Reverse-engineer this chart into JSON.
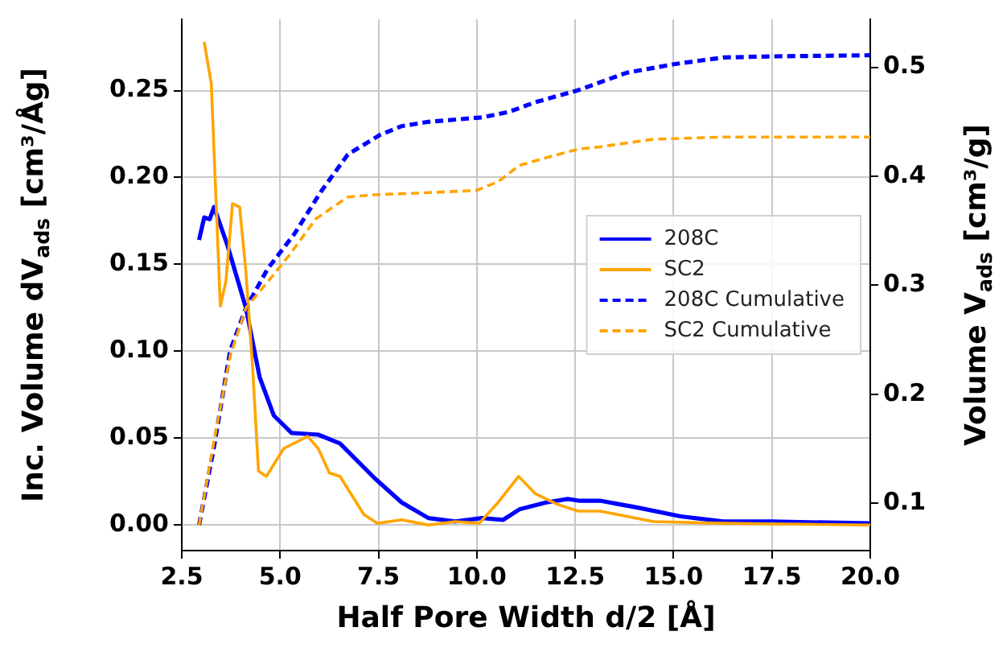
{
  "chart_data": {
    "type": "line",
    "xlabel": "Half Pore Width d/2 [Å]",
    "ylabel": "Inc. Volume dV$_{ads}$ [cm³/Åg]",
    "y2label": "Volume V$_{ads}$ [cm³/g]",
    "xlim": [
      2.5,
      20
    ],
    "xticks": [
      {
        "value": 2.5,
        "label": "2.5"
      },
      {
        "value": 5,
        "label": "5.0"
      },
      {
        "value": 7.5,
        "label": "7.5"
      },
      {
        "value": 10,
        "label": "10.0"
      },
      {
        "value": 12.5,
        "label": "12.5"
      },
      {
        "value": 15,
        "label": "15.0"
      },
      {
        "value": 17.5,
        "label": "17.5"
      },
      {
        "value": 20,
        "label": "20.0"
      }
    ],
    "ylim": [
      -0.0147,
      0.291
    ],
    "yticks": [
      {
        "value": 0,
        "label": "0.00"
      },
      {
        "value": 0.05,
        "label": "0.05"
      },
      {
        "value": 0.1,
        "label": "0.10"
      },
      {
        "value": 0.15,
        "label": "0.15"
      },
      {
        "value": 0.2,
        "label": "0.20"
      },
      {
        "value": 0.25,
        "label": "0.25"
      }
    ],
    "y2lim": [
      0.0566,
      0.544
    ],
    "y2ticks": [
      0.1,
      0.2,
      0.3,
      0.4,
      0.5
    ],
    "grid": true,
    "legend": "center right",
    "marker": "none",
    "series": [
      {
        "name": "208C",
        "color": "#0000ff",
        "line_style": "solid",
        "x": [
          2.94,
          3.07,
          3.21,
          3.32,
          3.66,
          4.13,
          4.48,
          4.84,
          5.29,
          5.97,
          6.52,
          7.4,
          8.09,
          8.77,
          9.45,
          10.13,
          10.67,
          11.08,
          11.76,
          12.31,
          12.59,
          13.13,
          14.09,
          15.18,
          16.27,
          17.49,
          20
        ],
        "values": [
          0.164,
          0.177,
          0.176,
          0.183,
          0.161,
          0.125,
          0.085,
          0.063,
          0.053,
          0.052,
          0.047,
          0.027,
          0.013,
          0.004,
          0.002,
          0.004,
          0.003,
          0.009,
          0.013,
          0.015,
          0.014,
          0.014,
          0.01,
          0.005,
          0.002,
          0.002,
          0.001
        ]
      },
      {
        "name": "SC2",
        "color": "#ffa500",
        "line_style": "solid",
        "x": [
          3.07,
          3.25,
          3.48,
          3.62,
          3.79,
          3.97,
          4.13,
          4.3,
          4.45,
          4.65,
          5.09,
          5.7,
          5.97,
          6.25,
          6.52,
          7.13,
          7.47,
          8.09,
          8.77,
          9.45,
          10.06,
          10.54,
          11.06,
          11.49,
          12.04,
          12.58,
          13.13,
          14.49,
          16.27,
          20
        ],
        "values": [
          0.278,
          0.254,
          0.126,
          0.14,
          0.185,
          0.183,
          0.146,
          0.091,
          0.031,
          0.028,
          0.044,
          0.051,
          0.044,
          0.03,
          0.028,
          0.006,
          0.001,
          0.003,
          0.0,
          0.002,
          0.001,
          0.013,
          0.028,
          0.018,
          0.012,
          0.008,
          0.008,
          0.002,
          0.001,
          0.0
        ]
      },
      {
        "name": "208C Cumulative",
        "color": "#0000ff",
        "line_style": "dashed",
        "axis": "y2",
        "x": [
          2.94,
          3.32,
          3.73,
          4.13,
          4.68,
          5.36,
          6.04,
          6.72,
          7.54,
          8.09,
          8.77,
          10.13,
          10.81,
          11.49,
          12.58,
          13.81,
          15.04,
          16.27,
          17.49,
          20
        ],
        "values": [
          0.08,
          0.152,
          0.24,
          0.279,
          0.315,
          0.347,
          0.386,
          0.42,
          0.438,
          0.446,
          0.45,
          0.454,
          0.459,
          0.468,
          0.479,
          0.495,
          0.503,
          0.509,
          0.51,
          0.511
        ]
      },
      {
        "name": "SC2 Cumulative",
        "color": "#ffa500",
        "line_style": "dashed",
        "axis": "y2",
        "x": [
          2.94,
          3.32,
          3.73,
          4.13,
          4.68,
          5.22,
          5.91,
          6.72,
          7.4,
          8.77,
          9.99,
          10.54,
          11.08,
          11.76,
          12.58,
          13.13,
          14.49,
          16.27,
          20
        ],
        "values": [
          0.08,
          0.157,
          0.235,
          0.279,
          0.303,
          0.327,
          0.361,
          0.381,
          0.383,
          0.385,
          0.387,
          0.395,
          0.41,
          0.417,
          0.425,
          0.427,
          0.434,
          0.436,
          0.436
        ]
      }
    ]
  }
}
